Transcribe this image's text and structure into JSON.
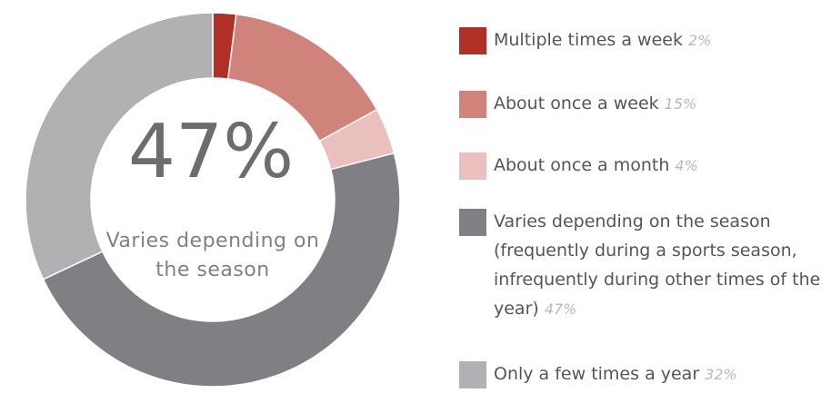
{
  "chart_data": {
    "type": "donut",
    "categories": [
      "Multiple times a week",
      "About once a week",
      "About once a month",
      "Varies depending on the season (frequently during a sports season, infrequently during other times of the year)",
      "Only a few times a year"
    ],
    "values": [
      2,
      15,
      4,
      47,
      32
    ],
    "value_labels": [
      "2%",
      "15%",
      "4%",
      "47%",
      "32%"
    ],
    "colors": [
      "#b03027",
      "#d0837a",
      "#e9c0bd",
      "#807f84",
      "#b1b0b3"
    ],
    "center": {
      "value_label": "47%",
      "text": "Varies depending on the season"
    },
    "legend": "right"
  }
}
